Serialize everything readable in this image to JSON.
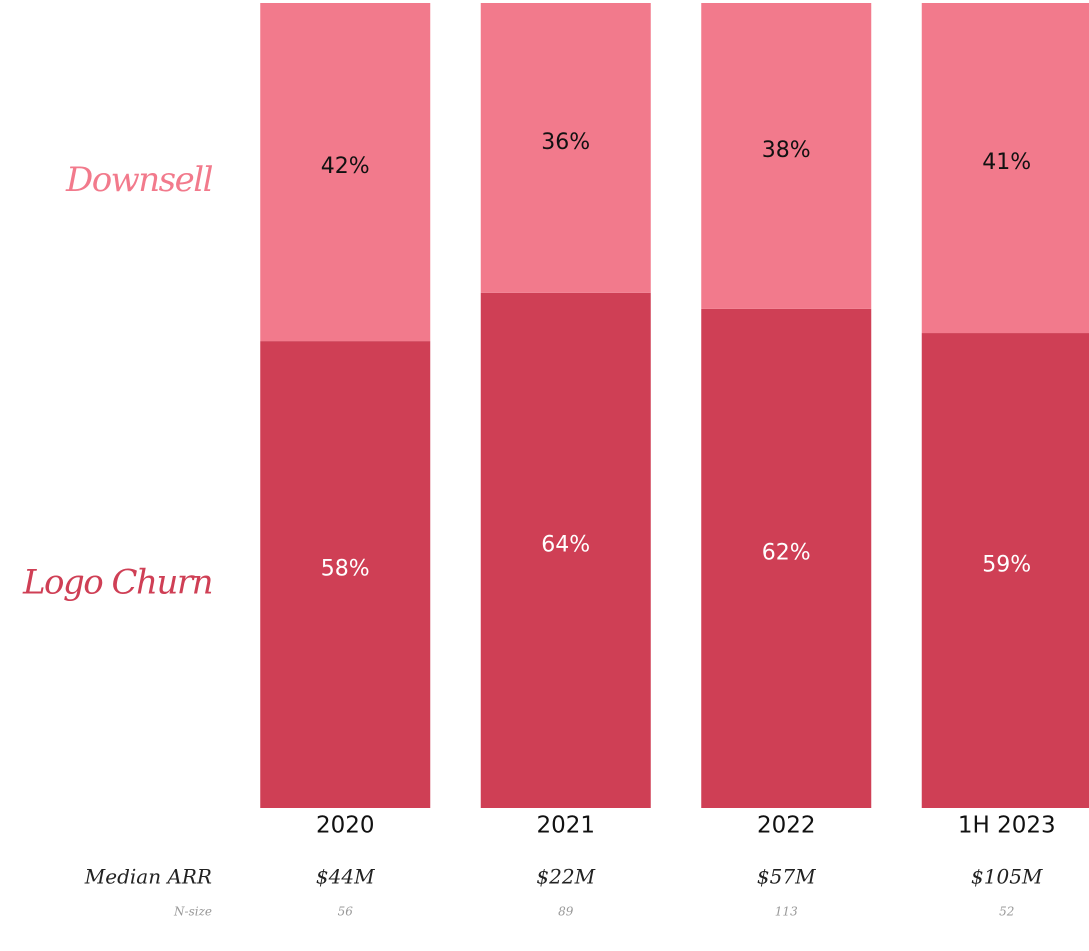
{
  "chart_data": {
    "type": "bar",
    "stacked": true,
    "categories": [
      "2020",
      "2021",
      "2022",
      "1H 2023"
    ],
    "ylim": [
      0,
      100
    ],
    "series": [
      {
        "name": "Logo Churn",
        "color": "#cf3f55",
        "values": [
          58,
          64,
          62,
          59
        ],
        "value_labels": [
          "58%",
          "64%",
          "62%",
          "59%"
        ]
      },
      {
        "name": "Downsell",
        "color": "#f27a8c",
        "values": [
          42,
          36,
          38,
          41
        ],
        "value_labels": [
          "42%",
          "36%",
          "38%",
          "41%"
        ]
      }
    ],
    "median_arr": {
      "label": "Median ARR",
      "values": [
        44,
        22,
        57,
        105
      ],
      "value_labels": [
        "$44M",
        "$22M",
        "$57M",
        "$105M"
      ]
    },
    "n_size": {
      "label": "N-size",
      "values": [
        56,
        89,
        113,
        52
      ]
    }
  }
}
